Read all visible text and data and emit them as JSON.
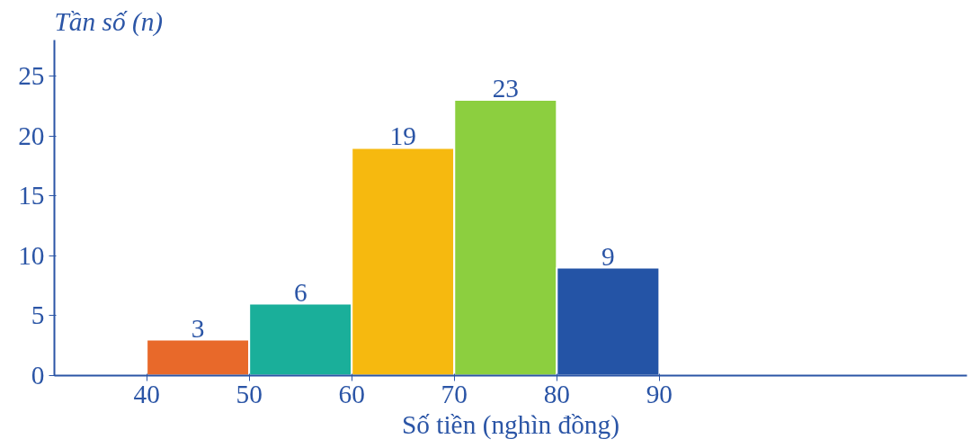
{
  "chart_data": {
    "type": "histogram",
    "ylabel": "Tần số (n)",
    "xlabel": "Số tiền (nghìn đồng)",
    "bins": [
      40,
      50,
      60,
      70,
      80,
      90
    ],
    "values": [
      3,
      6,
      19,
      23,
      9
    ],
    "colors": [
      "#e8692a",
      "#1aaf9a",
      "#f6b90f",
      "#8ccf3f",
      "#2454a6"
    ],
    "xlim": [
      31,
      120
    ],
    "ylim": [
      0,
      28
    ],
    "xticks": [
      40,
      50,
      60,
      70,
      80,
      90
    ],
    "yticks": [
      0,
      5,
      10,
      15,
      20,
      25
    ],
    "data_labels": true,
    "grid": false
  }
}
